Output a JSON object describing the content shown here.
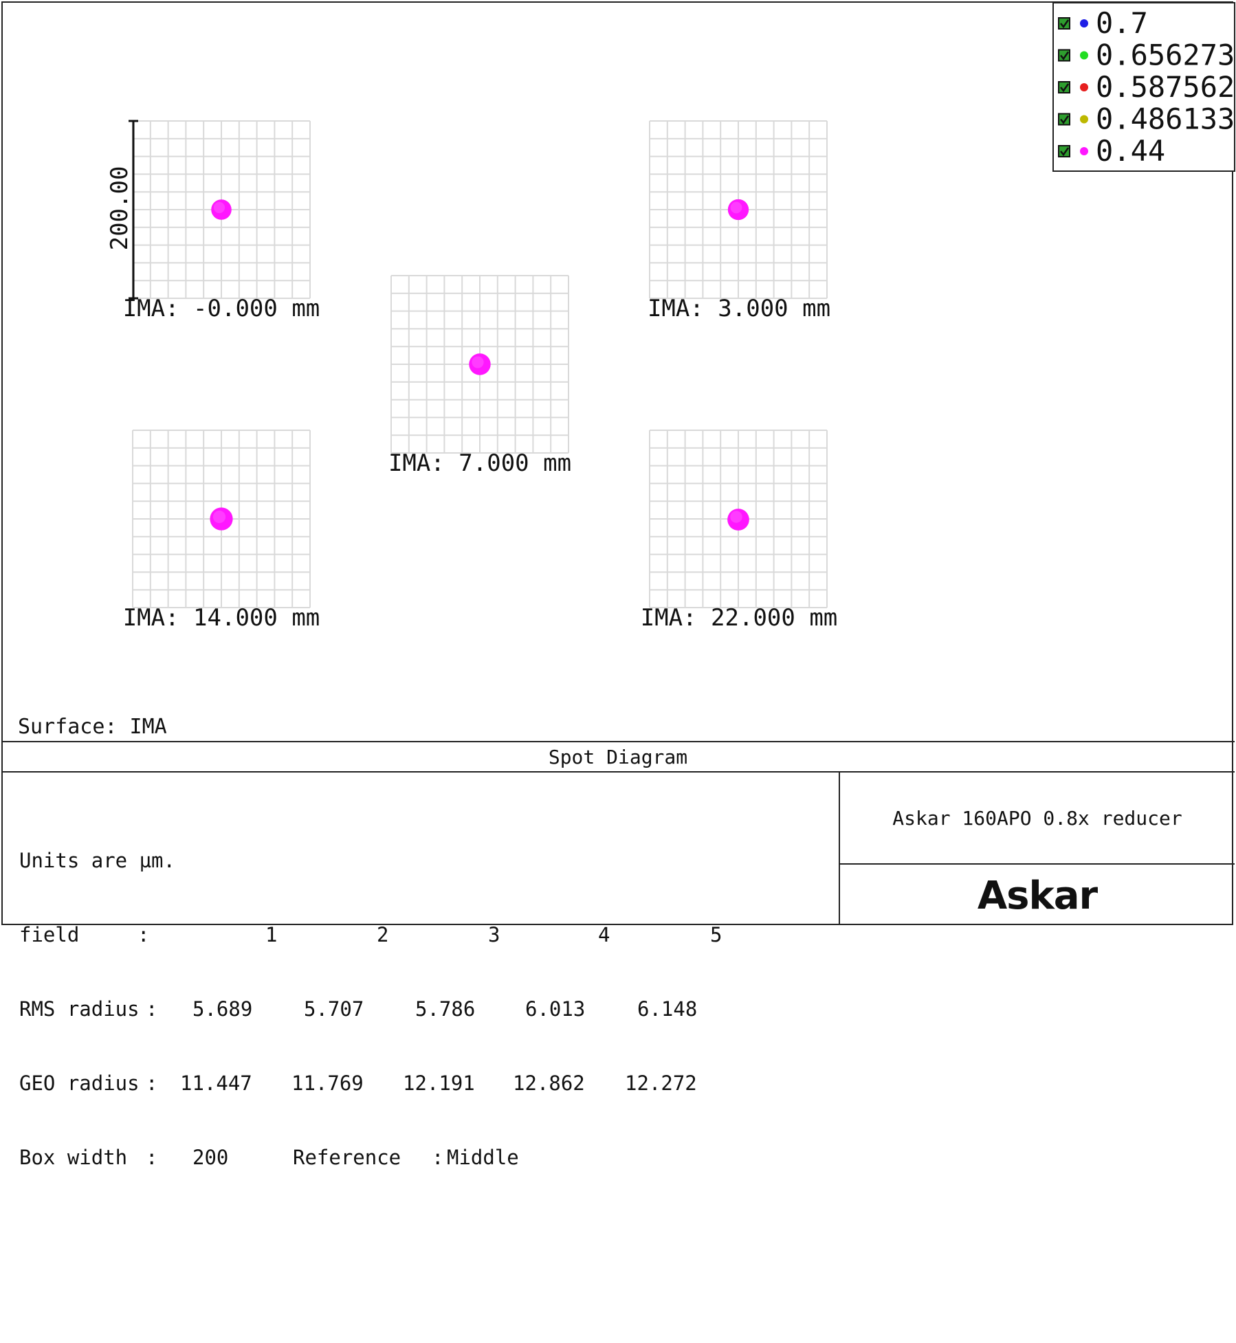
{
  "chart_data": {
    "type": "scatter",
    "title": "Spot Diagram",
    "surface_label": "Surface: IMA",
    "units_line": "Units are µm.",
    "scale_label": "200.00",
    "box_width": 200,
    "wavelengths": [
      {
        "label": "0.7",
        "color": "#1f1fe6"
      },
      {
        "label": "0.656273",
        "color": "#22dd22"
      },
      {
        "label": "0.587562",
        "color": "#e61f1f"
      },
      {
        "label": "0.486133",
        "color": "#bdb800"
      },
      {
        "label": "0.44",
        "color": "#ff17ff"
      }
    ],
    "fields": [
      {
        "number": "1",
        "ima_label": "IMA: -0.000 mm",
        "rms_radius": "5.689",
        "geo_radius": "11.447",
        "spot_radius_um": 11.447
      },
      {
        "number": "2",
        "ima_label": "IMA: 3.000 mm",
        "rms_radius": "5.707",
        "geo_radius": "11.769",
        "spot_radius_um": 11.769
      },
      {
        "number": "3",
        "ima_label": "IMA: 7.000 mm",
        "rms_radius": "5.786",
        "geo_radius": "12.191",
        "spot_radius_um": 12.191
      },
      {
        "number": "4",
        "ima_label": "IMA: 14.000 mm",
        "rms_radius": "6.013",
        "geo_radius": "12.862",
        "spot_radius_um": 12.862
      },
      {
        "number": "5",
        "ima_label": "IMA: 22.000 mm",
        "rms_radius": "6.148",
        "geo_radius": "12.272",
        "spot_radius_um": 12.272
      }
    ],
    "table": {
      "field_label": "field",
      "rms_label": "RMS radius",
      "geo_label": "GEO radius",
      "box_label": "Box width",
      "box_value": "200",
      "reference_label": "Reference",
      "reference_value": "Middle",
      "colon": ":"
    },
    "design_title": "Askar 160APO 0.8x reducer",
    "logo_text": "Askar"
  }
}
